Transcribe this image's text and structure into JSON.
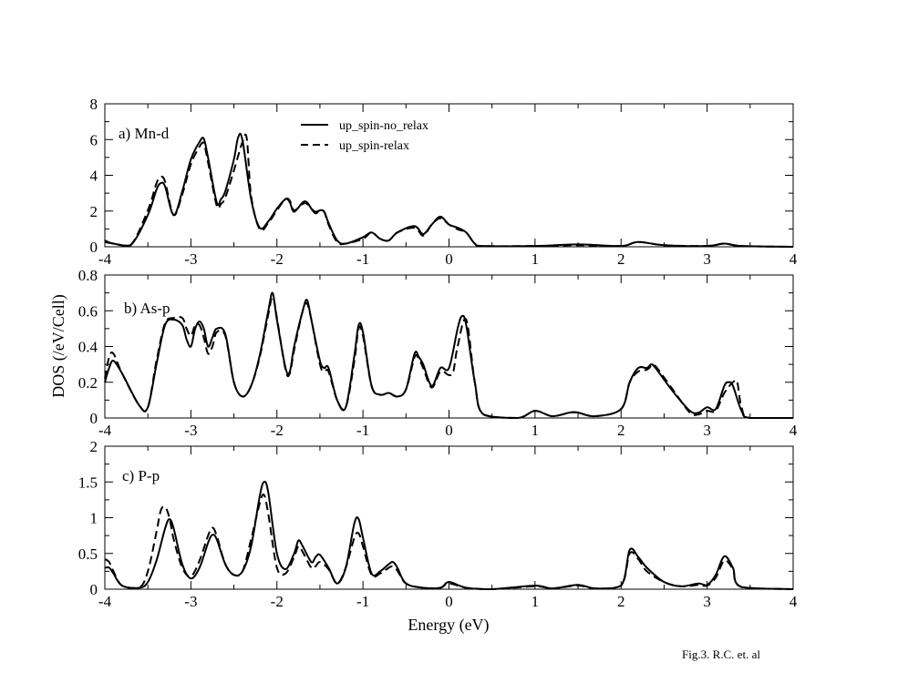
{
  "figure": {
    "ylabel": "DOS (/eV/Cell)",
    "xlabel": "Energy (eV)",
    "caption": "Fig.3. R.C. et. al",
    "legend": {
      "solid": "up_spin-no_relax",
      "dashed": "up_spin-relax"
    }
  },
  "chart_data": [
    {
      "type": "line",
      "title": "a) Mn-d",
      "xlim": [
        -4,
        4
      ],
      "ylim": [
        0,
        9
      ],
      "xticks": [
        "-4",
        "-3",
        "-2",
        "-1",
        "0",
        "1",
        "2",
        "3",
        "4"
      ],
      "yticks": [
        "0",
        "2",
        "4",
        "6",
        "8"
      ],
      "grid": false,
      "legend_position": "top-center",
      "series": [
        {
          "name": "up_spin-no_relax",
          "style": "solid",
          "x": [
            -4.0,
            -3.9,
            -3.7,
            -3.5,
            -3.4,
            -3.35,
            -3.3,
            -3.2,
            -3.1,
            -3.0,
            -2.9,
            -2.85,
            -2.8,
            -2.7,
            -2.65,
            -2.6,
            -2.5,
            -2.45,
            -2.4,
            -2.3,
            -2.2,
            -2.1,
            -2.0,
            -1.9,
            -1.85,
            -1.8,
            -1.7,
            -1.65,
            -1.6,
            -1.55,
            -1.5,
            -1.45,
            -1.4,
            -1.3,
            -1.2,
            -1.0,
            -0.9,
            -0.8,
            -0.7,
            -0.6,
            -0.4,
            -0.3,
            -0.2,
            -0.1,
            0.0,
            0.1,
            0.2,
            0.3,
            0.4,
            1.0,
            1.5,
            2.0,
            2.2,
            2.5,
            3.0,
            3.2,
            3.4,
            4.0
          ],
          "y": [
            0.4,
            0.2,
            0.1,
            2.0,
            3.6,
            4.0,
            3.8,
            2.0,
            3.5,
            5.5,
            6.6,
            6.8,
            5.6,
            2.8,
            3.0,
            3.5,
            5.5,
            6.9,
            6.7,
            3.0,
            1.2,
            1.6,
            2.4,
            3.0,
            2.8,
            2.2,
            2.8,
            2.8,
            2.4,
            2.1,
            2.3,
            2.2,
            1.5,
            0.4,
            0.2,
            0.6,
            0.9,
            0.5,
            0.4,
            0.9,
            1.3,
            0.8,
            1.4,
            1.9,
            1.4,
            1.2,
            0.9,
            0.2,
            0.05,
            0.05,
            0.15,
            0.05,
            0.3,
            0.1,
            0.05,
            0.2,
            0.05,
            0.0
          ]
        },
        {
          "name": "up_spin-relax",
          "style": "dashed",
          "x": [
            -4.0,
            -3.9,
            -3.7,
            -3.5,
            -3.4,
            -3.35,
            -3.3,
            -3.2,
            -3.1,
            -3.0,
            -2.9,
            -2.85,
            -2.8,
            -2.7,
            -2.65,
            -2.6,
            -2.5,
            -2.4,
            -2.35,
            -2.3,
            -2.2,
            -2.1,
            -2.0,
            -1.9,
            -1.85,
            -1.8,
            -1.7,
            -1.65,
            -1.6,
            -1.55,
            -1.5,
            -1.45,
            -1.4,
            -1.3,
            -1.2,
            -1.0,
            -0.9,
            -0.8,
            -0.7,
            -0.6,
            -0.4,
            -0.3,
            -0.2,
            -0.1,
            0.0,
            0.1,
            0.2,
            0.3,
            0.4,
            1.0,
            1.5,
            2.0,
            2.2,
            2.5,
            3.0,
            3.2,
            3.4,
            4.0
          ],
          "y": [
            0.3,
            0.2,
            0.1,
            2.3,
            4.0,
            4.4,
            4.1,
            2.0,
            3.3,
            5.2,
            6.3,
            6.5,
            5.3,
            2.6,
            2.7,
            3.1,
            4.8,
            6.6,
            6.8,
            3.2,
            1.1,
            1.5,
            2.3,
            3.0,
            2.9,
            2.3,
            2.7,
            2.7,
            2.4,
            2.2,
            2.3,
            2.2,
            1.4,
            0.3,
            0.2,
            0.5,
            0.9,
            0.5,
            0.4,
            0.9,
            1.2,
            0.7,
            1.4,
            1.8,
            1.4,
            1.1,
            0.9,
            0.2,
            0.05,
            0.05,
            0.1,
            0.05,
            0.3,
            0.1,
            0.05,
            0.2,
            0.05,
            0.0
          ]
        }
      ]
    },
    {
      "type": "line",
      "title": "b) As-p",
      "xlim": [
        -4,
        4
      ],
      "ylim": [
        0,
        0.8
      ],
      "xticks": [
        "-4",
        "-3",
        "-2",
        "-1",
        "0",
        "1",
        "2",
        "3",
        "4"
      ],
      "yticks": [
        "0",
        "0.2",
        "0.4",
        "0.6",
        "0.8"
      ],
      "grid": false,
      "series": [
        {
          "name": "up_spin-no_relax",
          "style": "solid",
          "x": [
            -4.0,
            -3.95,
            -3.9,
            -3.8,
            -3.6,
            -3.5,
            -3.4,
            -3.3,
            -3.2,
            -3.1,
            -3.05,
            -3.0,
            -2.95,
            -2.9,
            -2.85,
            -2.8,
            -2.75,
            -2.7,
            -2.6,
            -2.5,
            -2.4,
            -2.3,
            -2.2,
            -2.1,
            -2.05,
            -2.0,
            -1.9,
            -1.85,
            -1.8,
            -1.7,
            -1.65,
            -1.6,
            -1.5,
            -1.45,
            -1.4,
            -1.3,
            -1.2,
            -1.1,
            -1.05,
            -1.0,
            -0.9,
            -0.8,
            -0.7,
            -0.6,
            -0.5,
            -0.4,
            -0.35,
            -0.3,
            -0.2,
            -0.1,
            0.0,
            0.1,
            0.15,
            0.2,
            0.3,
            0.4,
            0.8,
            1.0,
            1.2,
            1.4,
            1.5,
            1.7,
            2.0,
            2.1,
            2.2,
            2.3,
            2.35,
            2.4,
            2.6,
            2.8,
            2.9,
            3.0,
            3.1,
            3.2,
            3.25,
            3.3,
            3.4,
            3.5,
            4.0
          ],
          "y": [
            0.2,
            0.28,
            0.32,
            0.25,
            0.07,
            0.06,
            0.3,
            0.52,
            0.55,
            0.52,
            0.44,
            0.4,
            0.5,
            0.54,
            0.5,
            0.4,
            0.45,
            0.5,
            0.47,
            0.2,
            0.12,
            0.18,
            0.35,
            0.6,
            0.7,
            0.55,
            0.28,
            0.26,
            0.4,
            0.6,
            0.66,
            0.55,
            0.32,
            0.28,
            0.28,
            0.1,
            0.06,
            0.35,
            0.52,
            0.48,
            0.18,
            0.13,
            0.14,
            0.12,
            0.16,
            0.36,
            0.34,
            0.3,
            0.18,
            0.28,
            0.28,
            0.5,
            0.57,
            0.52,
            0.2,
            0.02,
            0.0,
            0.04,
            0.01,
            0.03,
            0.03,
            0.01,
            0.05,
            0.2,
            0.28,
            0.28,
            0.3,
            0.28,
            0.15,
            0.04,
            0.03,
            0.06,
            0.05,
            0.18,
            0.2,
            0.18,
            0.04,
            0.0,
            0.0
          ]
        },
        {
          "name": "up_spin-relax",
          "style": "dashed",
          "x": [
            -4.0,
            -3.95,
            -3.9,
            -3.8,
            -3.6,
            -3.5,
            -3.4,
            -3.3,
            -3.2,
            -3.1,
            -3.05,
            -3.0,
            -2.95,
            -2.9,
            -2.85,
            -2.8,
            -2.75,
            -2.7,
            -2.6,
            -2.5,
            -2.4,
            -2.3,
            -2.2,
            -2.1,
            -2.05,
            -2.0,
            -1.9,
            -1.85,
            -1.8,
            -1.7,
            -1.65,
            -1.6,
            -1.5,
            -1.45,
            -1.4,
            -1.3,
            -1.2,
            -1.1,
            -1.05,
            -1.0,
            -0.9,
            -0.8,
            -0.7,
            -0.6,
            -0.5,
            -0.4,
            -0.35,
            -0.3,
            -0.2,
            -0.1,
            0.0,
            0.05,
            0.1,
            0.2,
            0.3,
            0.4,
            0.8,
            1.0,
            1.2,
            1.4,
            1.5,
            1.7,
            2.0,
            2.1,
            2.2,
            2.3,
            2.35,
            2.4,
            2.6,
            2.8,
            2.9,
            3.0,
            3.1,
            3.2,
            3.3,
            3.35,
            3.4,
            3.5,
            4.0
          ],
          "y": [
            0.22,
            0.34,
            0.36,
            0.25,
            0.07,
            0.06,
            0.32,
            0.53,
            0.56,
            0.56,
            0.5,
            0.46,
            0.52,
            0.52,
            0.45,
            0.36,
            0.4,
            0.48,
            0.46,
            0.2,
            0.12,
            0.18,
            0.34,
            0.58,
            0.68,
            0.56,
            0.27,
            0.25,
            0.38,
            0.6,
            0.64,
            0.55,
            0.3,
            0.26,
            0.26,
            0.1,
            0.06,
            0.32,
            0.5,
            0.46,
            0.18,
            0.13,
            0.14,
            0.12,
            0.16,
            0.34,
            0.33,
            0.28,
            0.17,
            0.26,
            0.24,
            0.26,
            0.4,
            0.55,
            0.2,
            0.02,
            0.0,
            0.04,
            0.01,
            0.03,
            0.03,
            0.01,
            0.05,
            0.2,
            0.26,
            0.27,
            0.29,
            0.29,
            0.16,
            0.03,
            0.02,
            0.04,
            0.04,
            0.14,
            0.2,
            0.2,
            0.06,
            0.0,
            0.0
          ]
        }
      ]
    },
    {
      "type": "line",
      "title": "c) P-p",
      "xlim": [
        -4,
        4
      ],
      "ylim": [
        0,
        2
      ],
      "xticks": [
        "-4",
        "-3",
        "-2",
        "-1",
        "0",
        "1",
        "2",
        "3",
        "4"
      ],
      "yticks": [
        "0",
        "0.5",
        "1",
        "1.5",
        "2"
      ],
      "grid": false,
      "series": [
        {
          "name": "up_spin-no_relax",
          "style": "solid",
          "x": [
            -4.0,
            -3.95,
            -3.9,
            -3.8,
            -3.6,
            -3.5,
            -3.4,
            -3.3,
            -3.25,
            -3.2,
            -3.1,
            -3.0,
            -2.9,
            -2.8,
            -2.75,
            -2.7,
            -2.6,
            -2.5,
            -2.4,
            -2.3,
            -2.2,
            -2.15,
            -2.1,
            -2.0,
            -1.9,
            -1.8,
            -1.75,
            -1.7,
            -1.6,
            -1.55,
            -1.5,
            -1.4,
            -1.3,
            -1.2,
            -1.1,
            -1.05,
            -1.0,
            -0.9,
            -0.8,
            -0.7,
            -0.65,
            -0.6,
            -0.5,
            -0.3,
            -0.1,
            0.0,
            0.2,
            0.5,
            1.0,
            1.2,
            1.5,
            1.7,
            2.0,
            2.1,
            2.2,
            2.3,
            2.5,
            2.7,
            2.9,
            3.0,
            3.1,
            3.2,
            3.3,
            3.4,
            4.0
          ],
          "y": [
            0.3,
            0.3,
            0.22,
            0.05,
            0.02,
            0.1,
            0.4,
            0.85,
            0.98,
            0.85,
            0.35,
            0.15,
            0.3,
            0.65,
            0.76,
            0.7,
            0.35,
            0.2,
            0.25,
            0.6,
            1.3,
            1.5,
            1.35,
            0.5,
            0.28,
            0.5,
            0.68,
            0.6,
            0.38,
            0.45,
            0.48,
            0.3,
            0.08,
            0.3,
            0.92,
            0.98,
            0.72,
            0.22,
            0.25,
            0.35,
            0.38,
            0.3,
            0.08,
            0.02,
            0.02,
            0.1,
            0.02,
            0.0,
            0.05,
            0.01,
            0.06,
            0.01,
            0.05,
            0.55,
            0.45,
            0.3,
            0.1,
            0.04,
            0.08,
            0.06,
            0.2,
            0.46,
            0.3,
            0.03,
            0.0
          ]
        },
        {
          "name": "up_spin-relax",
          "style": "dashed",
          "x": [
            -4.0,
            -3.95,
            -3.9,
            -3.8,
            -3.6,
            -3.5,
            -3.4,
            -3.35,
            -3.3,
            -3.25,
            -3.2,
            -3.1,
            -3.0,
            -2.9,
            -2.8,
            -2.75,
            -2.7,
            -2.6,
            -2.5,
            -2.4,
            -2.3,
            -2.2,
            -2.15,
            -2.1,
            -2.0,
            -1.9,
            -1.8,
            -1.75,
            -1.7,
            -1.6,
            -1.55,
            -1.5,
            -1.4,
            -1.3,
            -1.2,
            -1.1,
            -1.05,
            -1.0,
            -0.9,
            -0.8,
            -0.7,
            -0.65,
            -0.6,
            -0.5,
            -0.3,
            -0.1,
            0.0,
            0.2,
            0.5,
            1.0,
            1.2,
            1.5,
            1.7,
            2.0,
            2.1,
            2.2,
            2.3,
            2.5,
            2.7,
            2.9,
            3.0,
            3.1,
            3.2,
            3.3,
            3.4,
            4.0
          ],
          "y": [
            0.42,
            0.38,
            0.25,
            0.05,
            0.02,
            0.25,
            0.8,
            1.1,
            1.15,
            1.0,
            0.7,
            0.3,
            0.18,
            0.4,
            0.75,
            0.86,
            0.75,
            0.35,
            0.2,
            0.25,
            0.7,
            1.2,
            1.32,
            1.05,
            0.3,
            0.22,
            0.45,
            0.6,
            0.52,
            0.3,
            0.32,
            0.38,
            0.28,
            0.08,
            0.3,
            0.72,
            0.78,
            0.6,
            0.2,
            0.22,
            0.3,
            0.32,
            0.26,
            0.08,
            0.02,
            0.02,
            0.08,
            0.02,
            0.0,
            0.04,
            0.01,
            0.05,
            0.01,
            0.05,
            0.5,
            0.42,
            0.25,
            0.1,
            0.04,
            0.06,
            0.05,
            0.16,
            0.4,
            0.28,
            0.03,
            0.0
          ]
        }
      ]
    }
  ]
}
